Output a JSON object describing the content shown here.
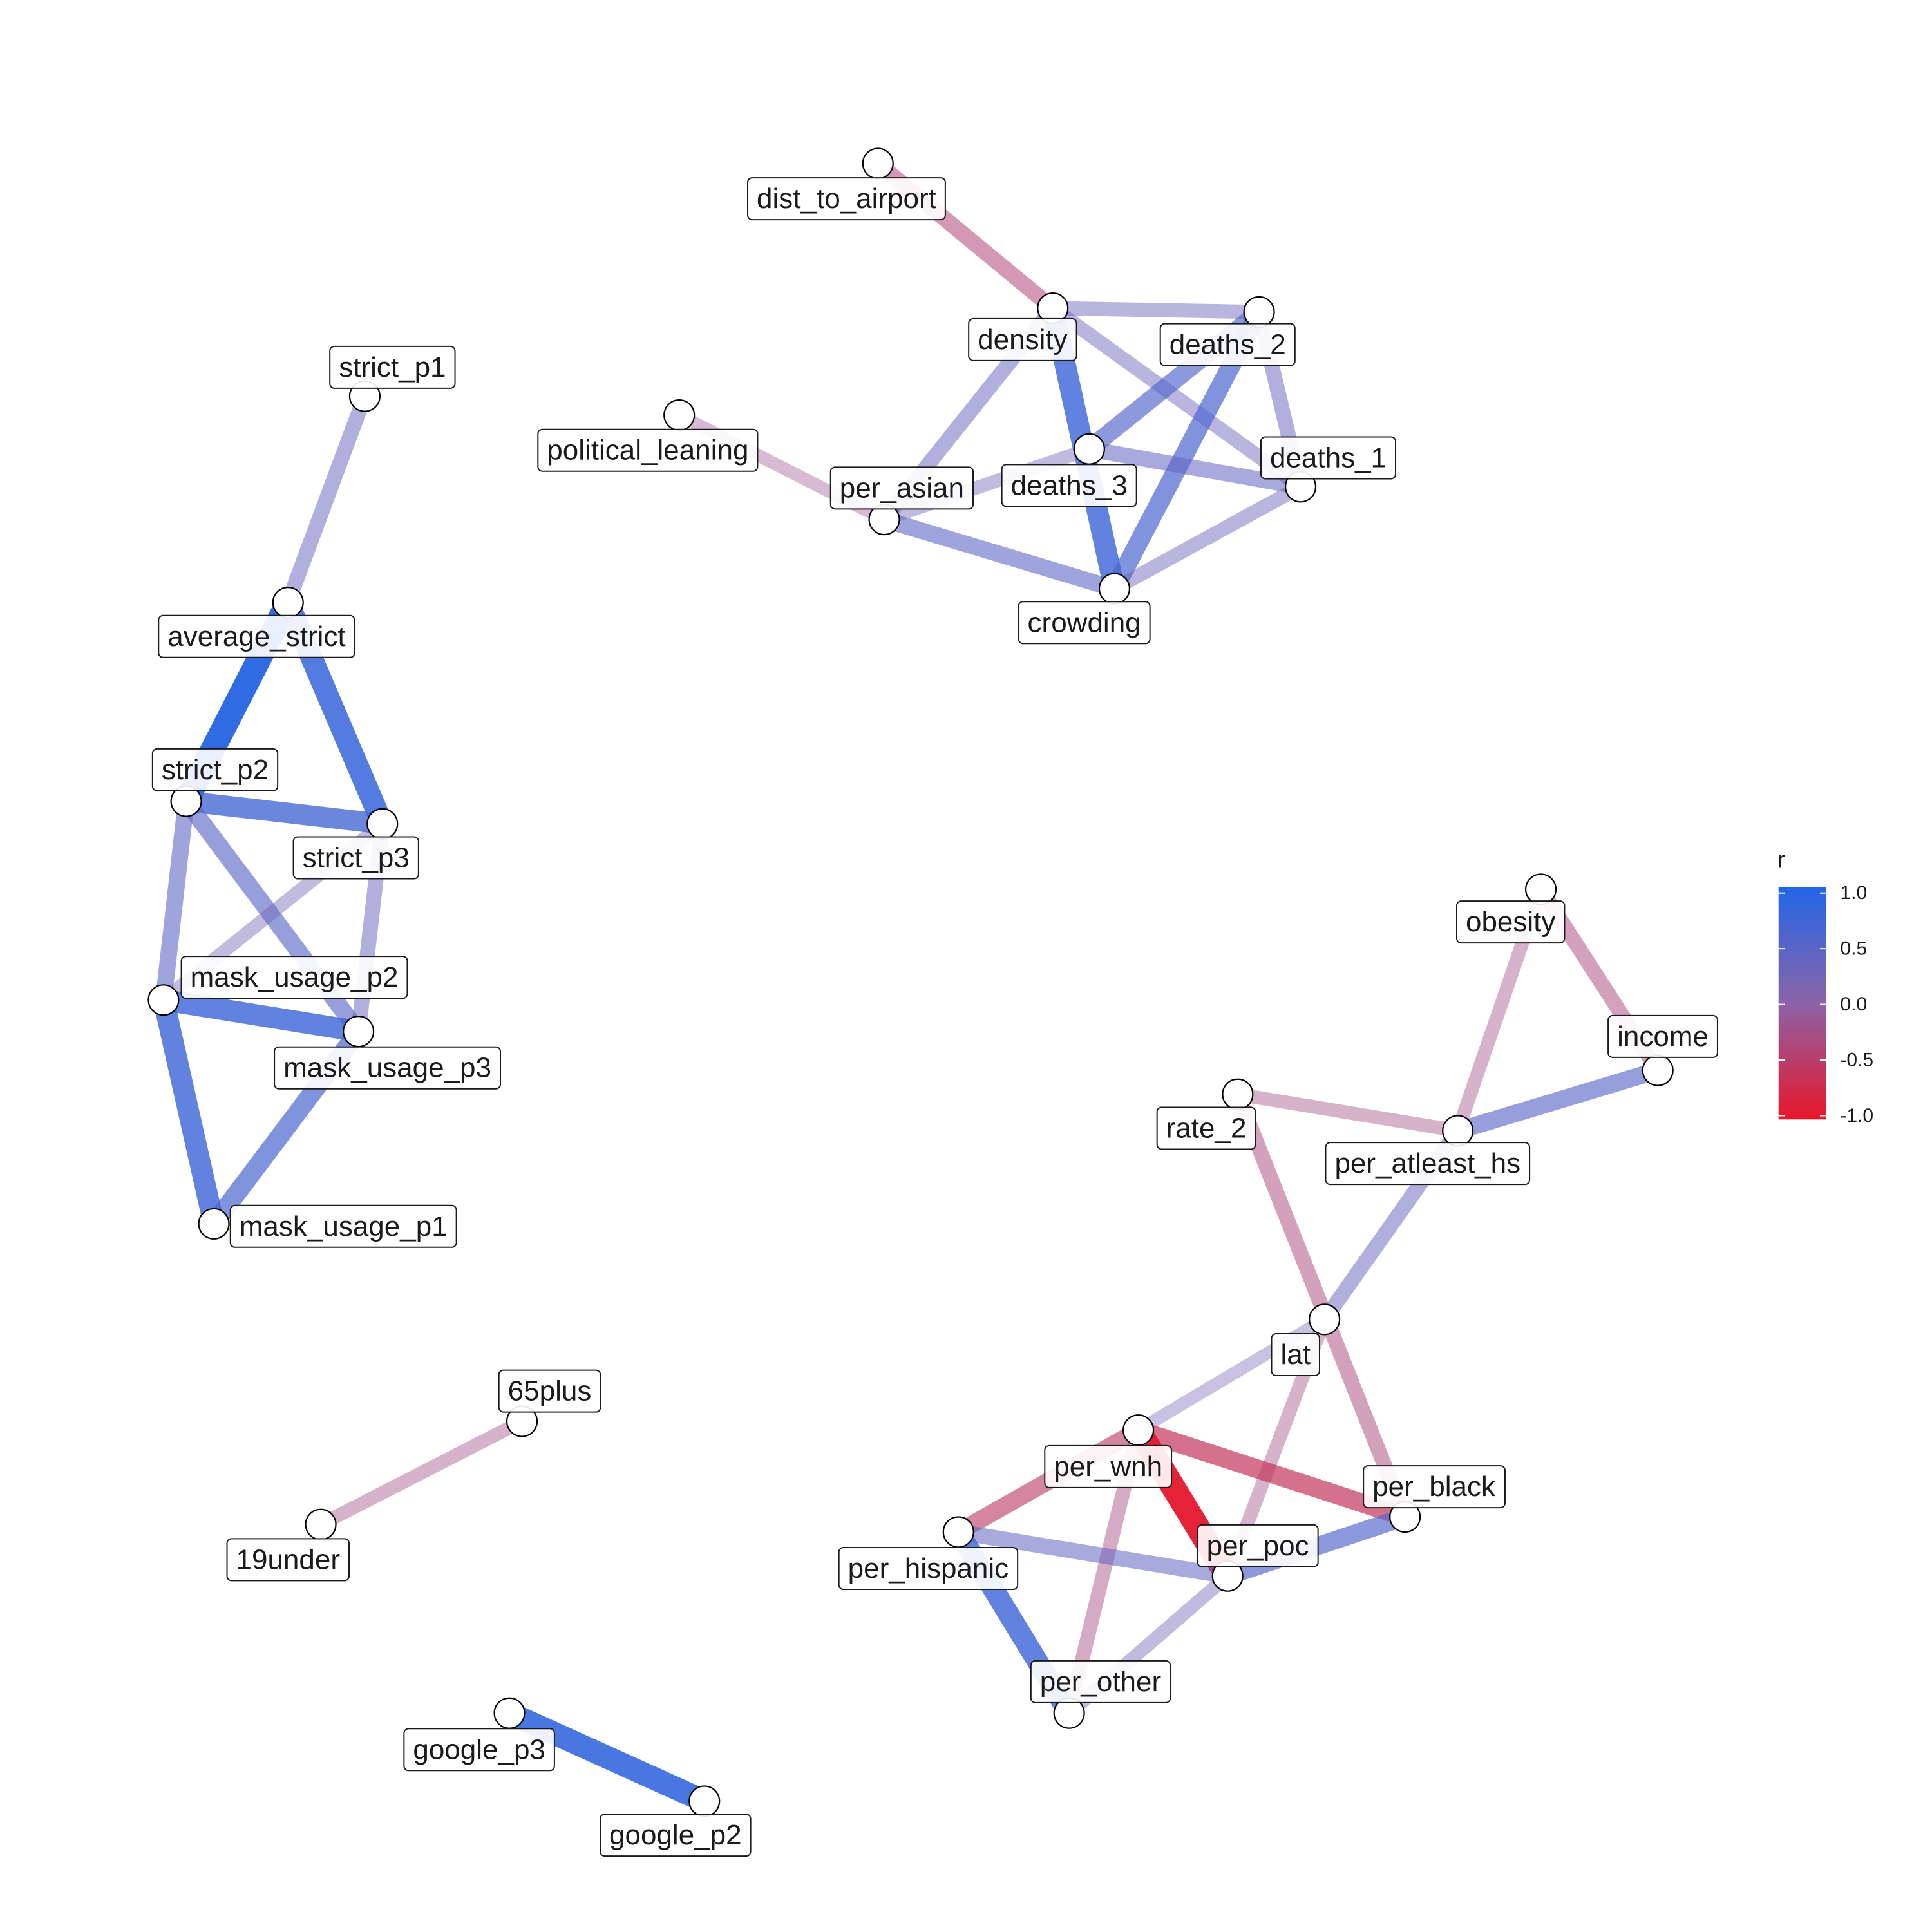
{
  "nodes": [
    {
      "id": "dist_to_airport",
      "label": "dist_to_airport"
    },
    {
      "id": "density",
      "label": "density"
    },
    {
      "id": "deaths_2",
      "label": "deaths_2"
    },
    {
      "id": "deaths_1",
      "label": "deaths_1"
    },
    {
      "id": "deaths_3",
      "label": "deaths_3"
    },
    {
      "id": "per_asian",
      "label": "per_asian"
    },
    {
      "id": "political_leaning",
      "label": "political_leaning"
    },
    {
      "id": "crowding",
      "label": "crowding"
    },
    {
      "id": "strict_p1",
      "label": "strict_p1"
    },
    {
      "id": "average_strict",
      "label": "average_strict"
    },
    {
      "id": "strict_p2",
      "label": "strict_p2"
    },
    {
      "id": "strict_p3",
      "label": "strict_p3"
    },
    {
      "id": "mask_usage_p2",
      "label": "mask_usage_p2"
    },
    {
      "id": "mask_usage_p3",
      "label": "mask_usage_p3"
    },
    {
      "id": "mask_usage_p1",
      "label": "mask_usage_p1"
    },
    {
      "id": "65plus",
      "label": "65plus"
    },
    {
      "id": "19under",
      "label": "19under"
    },
    {
      "id": "google_p3",
      "label": "google_p3"
    },
    {
      "id": "google_p2",
      "label": "google_p2"
    },
    {
      "id": "obesity",
      "label": "obesity"
    },
    {
      "id": "income",
      "label": "income"
    },
    {
      "id": "rate_2",
      "label": "rate_2"
    },
    {
      "id": "per_atleast_hs",
      "label": "per_atleast_hs"
    },
    {
      "id": "lat",
      "label": "lat"
    },
    {
      "id": "per_wnh",
      "label": "per_wnh"
    },
    {
      "id": "per_black",
      "label": "per_black"
    },
    {
      "id": "per_hispanic",
      "label": "per_hispanic"
    },
    {
      "id": "per_poc",
      "label": "per_poc"
    },
    {
      "id": "per_other",
      "label": "per_other"
    }
  ],
  "edges": [
    {
      "source": "dist_to_airport",
      "target": "density",
      "r": -0.4
    },
    {
      "source": "density",
      "target": "deaths_2",
      "r": 0.3
    },
    {
      "source": "density",
      "target": "deaths_1",
      "r": 0.3
    },
    {
      "source": "density",
      "target": "per_asian",
      "r": 0.35
    },
    {
      "source": "density",
      "target": "crowding",
      "r": 0.75
    },
    {
      "source": "deaths_2",
      "target": "deaths_3",
      "r": 0.55
    },
    {
      "source": "deaths_2",
      "target": "crowding",
      "r": 0.6
    },
    {
      "source": "deaths_2",
      "target": "deaths_1",
      "r": 0.35
    },
    {
      "source": "deaths_3",
      "target": "deaths_1",
      "r": 0.4
    },
    {
      "source": "deaths_3",
      "target": "per_asian",
      "r": 0.25
    },
    {
      "source": "deaths_1",
      "target": "crowding",
      "r": 0.3
    },
    {
      "source": "per_asian",
      "target": "crowding",
      "r": 0.45
    },
    {
      "source": "political_leaning",
      "target": "per_asian",
      "r": -0.2
    },
    {
      "source": "strict_p1",
      "target": "average_strict",
      "r": 0.35
    },
    {
      "source": "average_strict",
      "target": "strict_p2",
      "r": 0.95
    },
    {
      "source": "average_strict",
      "target": "strict_p3",
      "r": 0.8
    },
    {
      "source": "strict_p2",
      "target": "strict_p3",
      "r": 0.7
    },
    {
      "source": "strict_p2",
      "target": "mask_usage_p2",
      "r": 0.45
    },
    {
      "source": "strict_p2",
      "target": "mask_usage_p3",
      "r": 0.5
    },
    {
      "source": "strict_p3",
      "target": "mask_usage_p2",
      "r": 0.25
    },
    {
      "source": "strict_p3",
      "target": "mask_usage_p3",
      "r": 0.35
    },
    {
      "source": "mask_usage_p2",
      "target": "mask_usage_p3",
      "r": 0.75
    },
    {
      "source": "mask_usage_p2",
      "target": "mask_usage_p1",
      "r": 0.75
    },
    {
      "source": "mask_usage_p3",
      "target": "mask_usage_p1",
      "r": 0.6
    },
    {
      "source": "65plus",
      "target": "19under",
      "r": -0.25
    },
    {
      "source": "google_p3",
      "target": "google_p2",
      "r": 0.85
    },
    {
      "source": "obesity",
      "target": "income",
      "r": -0.35
    },
    {
      "source": "obesity",
      "target": "per_atleast_hs",
      "r": -0.25
    },
    {
      "source": "income",
      "target": "per_atleast_hs",
      "r": 0.5
    },
    {
      "source": "rate_2",
      "target": "per_atleast_hs",
      "r": -0.25
    },
    {
      "source": "rate_2",
      "target": "per_black",
      "r": -0.35
    },
    {
      "source": "per_atleast_hs",
      "target": "lat",
      "r": 0.35
    },
    {
      "source": "lat",
      "target": "per_wnh",
      "r": 0.2
    },
    {
      "source": "lat",
      "target": "per_poc",
      "r": -0.25
    },
    {
      "source": "per_wnh",
      "target": "per_black",
      "r": -0.6
    },
    {
      "source": "per_wnh",
      "target": "per_poc",
      "r": -0.95
    },
    {
      "source": "per_wnh",
      "target": "per_hispanic",
      "r": -0.5
    },
    {
      "source": "per_wnh",
      "target": "per_other",
      "r": -0.3
    },
    {
      "source": "per_hispanic",
      "target": "per_poc",
      "r": 0.4
    },
    {
      "source": "per_hispanic",
      "target": "per_other",
      "r": 0.75
    },
    {
      "source": "per_poc",
      "target": "per_black",
      "r": 0.55
    },
    {
      "source": "per_poc",
      "target": "per_other",
      "r": 0.25
    }
  ],
  "legend": {
    "title": "r",
    "ticks": [
      "1.0",
      "0.5",
      "0.0",
      "-0.5",
      "-1.0"
    ],
    "tick_values": [
      1.0,
      0.5,
      0.0,
      -0.5,
      -1.0
    ]
  },
  "colors": {
    "positive": "#2166e6",
    "mid": "#8b63a8",
    "negative": "#e8162a"
  }
}
